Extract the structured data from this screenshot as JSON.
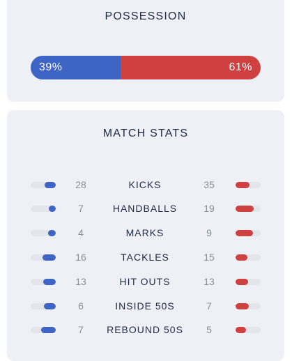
{
  "possession": {
    "title": "POSSESSION",
    "home_pct": 39,
    "away_pct": 61,
    "home_label": "39%",
    "away_label": "61%",
    "colors": {
      "home": "#3e64c6",
      "away": "#cf4141"
    }
  },
  "stats": {
    "title": "MATCH STATS",
    "rows": [
      {
        "label": "KICKS",
        "home": "28",
        "away": "35"
      },
      {
        "label": "HANDBALLS",
        "home": "7",
        "away": "19"
      },
      {
        "label": "MARKS",
        "home": "4",
        "away": "9"
      },
      {
        "label": "TACKLES",
        "home": "16",
        "away": "15"
      },
      {
        "label": "HIT OUTS",
        "home": "13",
        "away": "13"
      },
      {
        "label": "INSIDE 50S",
        "home": "6",
        "away": "7"
      },
      {
        "label": "REBOUND 50S",
        "home": "7",
        "away": "5"
      }
    ]
  }
}
